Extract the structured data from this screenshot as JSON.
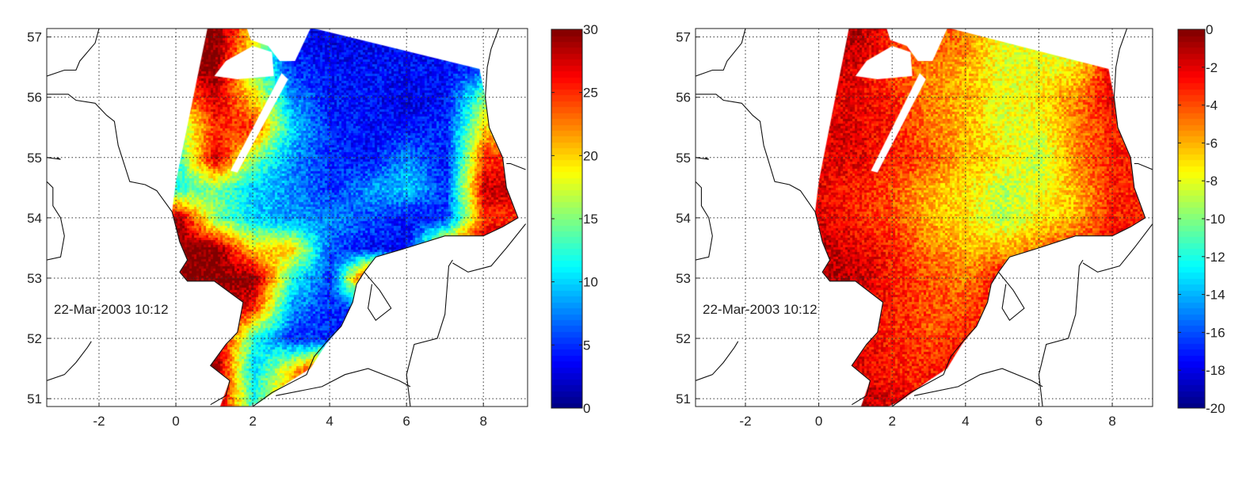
{
  "chart_data": [
    {
      "type": "heatmap",
      "title": "",
      "annotation": "22-Mar-2003 10:12",
      "xlabel": "",
      "ylabel": "",
      "xlim": [
        -3.36,
        9.15
      ],
      "ylim": [
        50.87,
        57.14
      ],
      "xticks": [
        -2,
        0,
        2,
        4,
        6,
        8
      ],
      "yticks": [
        51,
        52,
        53,
        54,
        55,
        56,
        57
      ],
      "grid": true,
      "colormap": "jet",
      "clim": [
        0,
        30
      ],
      "colorbar_ticks": [
        0,
        5,
        10,
        15,
        20,
        25,
        30
      ],
      "grid_lon": [
        0,
        1,
        2,
        3,
        4,
        5,
        6,
        7,
        8,
        9
      ],
      "grid_lat": [
        57,
        56.5,
        56,
        55.5,
        55,
        54.5,
        54,
        53.5,
        53,
        52.5,
        52,
        51.5,
        51
      ],
      "values": [
        [
          30,
          30,
          20,
          4,
          3,
          3,
          3,
          3,
          3,
          3
        ],
        [
          30,
          30,
          15,
          5,
          4,
          4,
          4,
          4,
          6,
          6
        ],
        [
          20,
          28,
          20,
          8,
          4,
          4,
          3,
          4,
          15,
          15
        ],
        [
          15,
          25,
          25,
          10,
          5,
          4,
          4,
          5,
          20,
          20
        ],
        [
          12,
          28,
          15,
          8,
          5,
          4,
          8,
          4,
          25,
          25
        ],
        [
          12,
          15,
          10,
          8,
          5,
          8,
          10,
          5,
          28,
          28
        ],
        [
          30,
          15,
          10,
          8,
          8,
          6,
          4,
          5,
          25,
          25
        ],
        [
          30,
          30,
          20,
          20,
          6,
          4,
          4,
          25,
          30,
          30
        ],
        [
          30,
          30,
          30,
          12,
          5,
          30,
          30,
          30,
          30,
          30
        ],
        [
          30,
          30,
          25,
          8,
          5,
          5,
          5,
          5,
          5,
          5
        ],
        [
          30,
          30,
          12,
          5,
          5,
          5,
          5,
          5,
          5,
          5
        ],
        [
          30,
          30,
          10,
          20,
          30,
          30,
          30,
          30,
          30,
          30
        ],
        [
          30,
          30,
          12,
          25,
          30,
          30,
          30,
          30,
          30,
          30
        ]
      ]
    },
    {
      "type": "heatmap",
      "title": "",
      "annotation": "22-Mar-2003 10:12",
      "xlabel": "",
      "ylabel": "",
      "xlim": [
        -3.36,
        9.1
      ],
      "ylim": [
        50.87,
        57.14
      ],
      "xticks": [
        -2,
        0,
        2,
        4,
        6,
        8
      ],
      "yticks": [
        51,
        52,
        53,
        54,
        55,
        56,
        57
      ],
      "grid": true,
      "colormap": "jet",
      "clim": [
        -20,
        0
      ],
      "colorbar_ticks": [
        -20,
        -18,
        -16,
        -14,
        -12,
        -10,
        -8,
        -6,
        -4,
        -2,
        0
      ],
      "grid_lon": [
        0,
        1,
        2,
        3,
        4,
        5,
        6,
        7,
        8,
        9
      ],
      "grid_lat": [
        57,
        56.5,
        56,
        55.5,
        55,
        54.5,
        54,
        53.5,
        53,
        52.5,
        52,
        51.5,
        51
      ],
      "values": [
        [
          -1,
          -1,
          -3,
          -4,
          -5,
          -8,
          -8,
          -10,
          -2,
          -2
        ],
        [
          -1,
          -2,
          -4,
          -5,
          -6,
          -8,
          -8,
          -7,
          -2,
          -2
        ],
        [
          -2,
          -2,
          -3,
          -5,
          -6,
          -8,
          -7,
          -5,
          -2,
          -2
        ],
        [
          -2,
          -2,
          -3,
          -5,
          -6,
          -8,
          -8,
          -5,
          -3,
          -3
        ],
        [
          -2,
          -2,
          -3,
          -4,
          -6,
          -7,
          -9,
          -5,
          -3,
          -3
        ],
        [
          -2,
          -3,
          -4,
          -6,
          -7,
          -9,
          -8,
          -6,
          -3,
          -3
        ],
        [
          -2,
          -3,
          -4,
          -6,
          -7,
          -9,
          -7,
          -6,
          -3,
          -3
        ],
        [
          -1,
          -2,
          -3,
          -5,
          -6,
          -6,
          -5,
          -3,
          -2,
          -2
        ],
        [
          -1,
          -1,
          -3,
          -4,
          -5,
          -2,
          -2,
          -2,
          -2,
          -2
        ],
        [
          -1,
          -2,
          -3,
          -4,
          -4,
          -3,
          -3,
          -3,
          -3,
          -3
        ],
        [
          -1,
          -2,
          -3,
          -4,
          -3,
          -3,
          -3,
          -3,
          -3,
          -3
        ],
        [
          -1,
          -2,
          -3,
          -3,
          -2,
          -2,
          -2,
          -2,
          -2,
          -2
        ],
        [
          -1,
          -1,
          -2,
          -3,
          -2,
          -2,
          -2,
          -2,
          -2,
          -2
        ]
      ]
    }
  ],
  "swath_polygon": [
    [
      0.82,
      57.14
    ],
    [
      3.6,
      57.14
    ],
    [
      7.9,
      56.47
    ],
    [
      8.05,
      56.0
    ],
    [
      8.15,
      55.5
    ],
    [
      8.5,
      55.0
    ],
    [
      8.6,
      54.5
    ],
    [
      8.9,
      54.0
    ],
    [
      8.5,
      53.85
    ],
    [
      8.0,
      53.7
    ],
    [
      7.0,
      53.7
    ],
    [
      6.0,
      53.5
    ],
    [
      5.2,
      53.35
    ],
    [
      4.9,
      53.1
    ],
    [
      4.7,
      52.9
    ],
    [
      4.6,
      52.6
    ],
    [
      4.3,
      52.2
    ],
    [
      3.9,
      51.9
    ],
    [
      3.5,
      51.5
    ],
    [
      3.0,
      51.3
    ],
    [
      2.2,
      50.95
    ],
    [
      1.9,
      50.87
    ],
    [
      1.15,
      50.87
    ],
    [
      1.4,
      51.3
    ],
    [
      0.9,
      51.55
    ],
    [
      1.3,
      51.9
    ],
    [
      1.6,
      52.1
    ],
    [
      1.75,
      52.6
    ],
    [
      1.0,
      52.95
    ],
    [
      0.3,
      52.95
    ],
    [
      0.1,
      53.1
    ],
    [
      0.3,
      53.3
    ],
    [
      0.1,
      53.6
    ],
    [
      -0.1,
      54.1
    ],
    [
      0.0,
      54.6
    ]
  ],
  "no_data_regions": [
    [
      [
        1.85,
        57.14
      ],
      [
        3.5,
        57.14
      ],
      [
        3.1,
        56.6
      ],
      [
        2.7,
        56.6
      ],
      [
        2.4,
        56.85
      ],
      [
        1.95,
        56.95
      ]
    ],
    [
      [
        1.0,
        56.35
      ],
      [
        1.3,
        56.6
      ],
      [
        2.0,
        56.85
      ],
      [
        2.5,
        56.75
      ],
      [
        2.55,
        56.35
      ],
      [
        1.6,
        56.3
      ]
    ],
    [
      [
        2.75,
        56.4
      ],
      [
        2.92,
        56.3
      ],
      [
        1.6,
        54.75
      ],
      [
        1.42,
        54.78
      ]
    ]
  ],
  "coastlines": [
    [
      [
        -2.0,
        57.14
      ],
      [
        -2.1,
        56.9
      ],
      [
        -2.5,
        56.6
      ],
      [
        -2.6,
        56.45
      ],
      [
        -2.9,
        56.45
      ],
      [
        -3.36,
        56.35
      ]
    ],
    [
      [
        -3.36,
        56.05
      ],
      [
        -2.8,
        56.05
      ],
      [
        -2.6,
        55.95
      ],
      [
        -2.1,
        55.9
      ],
      [
        -1.8,
        55.7
      ],
      [
        -1.6,
        55.6
      ],
      [
        -1.5,
        55.2
      ],
      [
        -1.4,
        55.0
      ],
      [
        -1.2,
        54.6
      ],
      [
        -0.8,
        54.55
      ],
      [
        -0.5,
        54.45
      ],
      [
        -0.1,
        54.1
      ],
      [
        0.1,
        53.6
      ],
      [
        0.3,
        53.3
      ],
      [
        0.1,
        53.1
      ],
      [
        0.3,
        52.95
      ],
      [
        1.0,
        52.95
      ],
      [
        1.75,
        52.6
      ],
      [
        1.6,
        52.1
      ],
      [
        1.3,
        51.9
      ],
      [
        0.9,
        51.55
      ],
      [
        1.4,
        51.3
      ],
      [
        1.3,
        51.05
      ],
      [
        0.9,
        50.9
      ]
    ],
    [
      [
        -3.36,
        51.3
      ],
      [
        -2.9,
        51.4
      ],
      [
        -2.6,
        51.6
      ],
      [
        -2.3,
        51.85
      ],
      [
        -2.2,
        51.95
      ]
    ],
    [
      [
        -3.36,
        53.3
      ],
      [
        -3.0,
        53.35
      ],
      [
        -2.9,
        53.7
      ],
      [
        -3.0,
        54.0
      ],
      [
        -3.2,
        54.2
      ],
      [
        -3.2,
        54.5
      ],
      [
        -3.36,
        54.6
      ]
    ],
    [
      [
        -3.36,
        55.0
      ],
      [
        -3.0,
        54.97
      ],
      [
        -3.1,
        55.0
      ]
    ],
    [
      [
        2.0,
        50.87
      ],
      [
        2.5,
        51.1
      ],
      [
        3.4,
        51.4
      ],
      [
        3.6,
        51.7
      ],
      [
        4.0,
        52.0
      ],
      [
        4.3,
        52.2
      ],
      [
        4.6,
        52.6
      ],
      [
        4.7,
        52.9
      ],
      [
        4.9,
        53.1
      ],
      [
        5.2,
        53.35
      ],
      [
        6.0,
        53.5
      ],
      [
        7.0,
        53.7
      ],
      [
        8.0,
        53.7
      ],
      [
        8.5,
        53.85
      ],
      [
        8.9,
        54.0
      ],
      [
        8.6,
        54.5
      ],
      [
        8.5,
        55.0
      ],
      [
        8.15,
        55.5
      ],
      [
        8.05,
        56.0
      ],
      [
        8.1,
        56.5
      ],
      [
        8.2,
        56.8
      ],
      [
        8.4,
        57.14
      ]
    ],
    [
      [
        4.9,
        53.1
      ],
      [
        5.3,
        52.8
      ],
      [
        5.6,
        52.5
      ],
      [
        5.2,
        52.3
      ],
      [
        5.0,
        52.5
      ],
      [
        5.1,
        52.9
      ]
    ],
    [
      [
        6.1,
        50.87
      ],
      [
        6.0,
        51.4
      ],
      [
        6.2,
        51.9
      ],
      [
        6.8,
        52.0
      ],
      [
        7.0,
        52.4
      ],
      [
        7.1,
        53.2
      ],
      [
        7.2,
        53.3
      ]
    ],
    [
      [
        2.6,
        51.05
      ],
      [
        3.8,
        51.2
      ],
      [
        4.4,
        51.4
      ],
      [
        5.0,
        51.5
      ],
      [
        5.8,
        51.3
      ],
      [
        6.1,
        51.2
      ]
    ],
    [
      [
        9.1,
        54.8
      ],
      [
        8.7,
        54.9
      ],
      [
        8.6,
        54.9
      ]
    ],
    [
      [
        7.2,
        53.25
      ],
      [
        7.6,
        53.1
      ],
      [
        8.2,
        53.2
      ],
      [
        8.6,
        53.5
      ],
      [
        9.1,
        53.9
      ]
    ]
  ]
}
